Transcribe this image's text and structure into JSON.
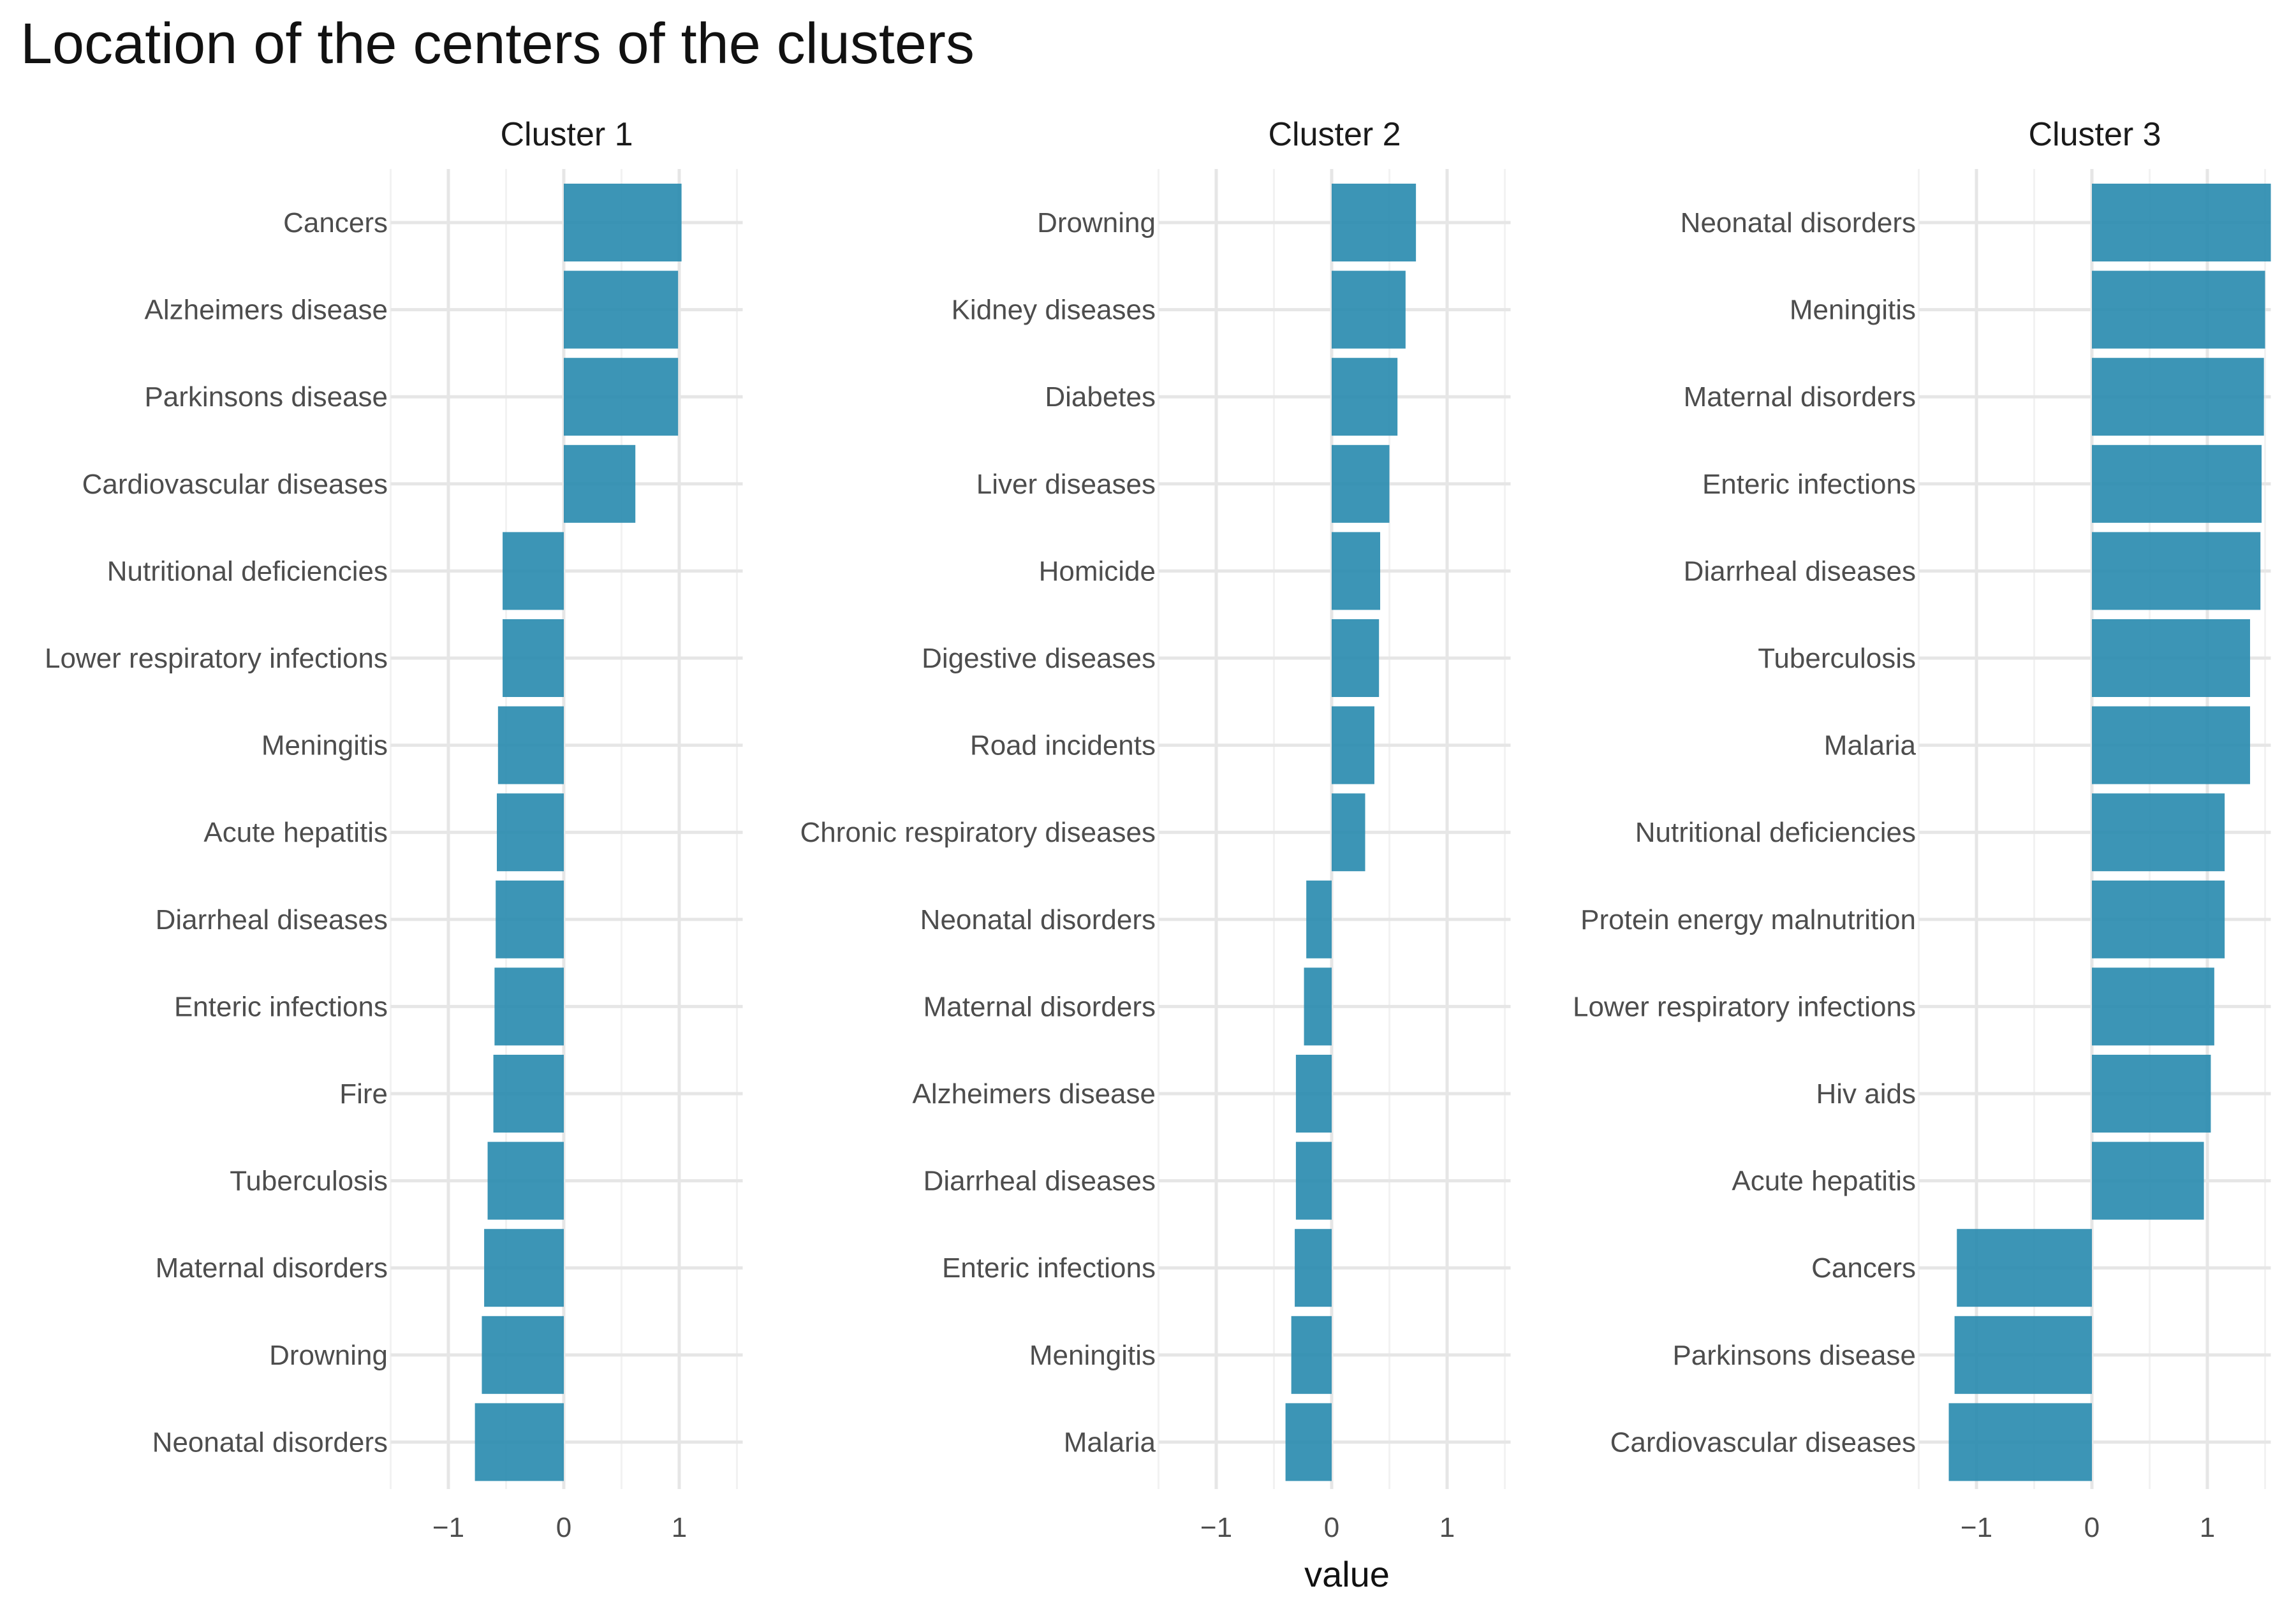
{
  "chart_data": {
    "type": "bar",
    "orientation": "horizontal",
    "title": "Location of the centers of the clusters",
    "xlabel": "value",
    "ylabel": "",
    "xlim": [
      -1.5,
      1.55
    ],
    "x_ticks": [
      -1,
      0,
      1
    ],
    "x_tick_labels": [
      "−1",
      "0",
      "1"
    ],
    "bar_color": "#2b8cb0",
    "grid": true,
    "legend": "none",
    "facets": [
      {
        "name": "Cluster 1",
        "categories": [
          "Cancers",
          "Alzheimers disease",
          "Parkinsons disease",
          "Cardiovascular diseases",
          "Nutritional deficiencies",
          "Lower respiratory infections",
          "Meningitis",
          "Acute hepatitis",
          "Diarrheal diseases",
          "Enteric infections",
          "Fire",
          "Tuberculosis",
          "Maternal disorders",
          "Drowning",
          "Neonatal disorders"
        ],
        "values": [
          1.02,
          0.99,
          0.99,
          0.62,
          -0.53,
          -0.53,
          -0.57,
          -0.58,
          -0.59,
          -0.6,
          -0.61,
          -0.66,
          -0.69,
          -0.71,
          -0.77
        ]
      },
      {
        "name": "Cluster 2",
        "categories": [
          "Drowning",
          "Kidney diseases",
          "Diabetes",
          "Liver diseases",
          "Homicide",
          "Digestive diseases",
          "Road incidents",
          "Chronic respiratory diseases",
          "Neonatal disorders",
          "Maternal disorders",
          "Alzheimers disease",
          "Diarrheal diseases",
          "Enteric infections",
          "Meningitis",
          "Malaria"
        ],
        "values": [
          0.73,
          0.64,
          0.57,
          0.5,
          0.42,
          0.41,
          0.37,
          0.29,
          -0.22,
          -0.24,
          -0.31,
          -0.31,
          -0.32,
          -0.35,
          -0.4
        ]
      },
      {
        "name": "Cluster 3",
        "categories": [
          "Neonatal disorders",
          "Meningitis",
          "Maternal disorders",
          "Enteric infections",
          "Diarrheal diseases",
          "Tuberculosis",
          "Malaria",
          "Nutritional deficiencies",
          "Protein energy malnutrition",
          "Lower respiratory infections",
          "Hiv aids",
          "Acute hepatitis",
          "Cancers",
          "Parkinsons disease",
          "Cardiovascular diseases"
        ],
        "values": [
          1.55,
          1.5,
          1.49,
          1.47,
          1.46,
          1.37,
          1.37,
          1.15,
          1.15,
          1.06,
          1.03,
          0.97,
          -1.17,
          -1.19,
          -1.24
        ]
      }
    ]
  }
}
